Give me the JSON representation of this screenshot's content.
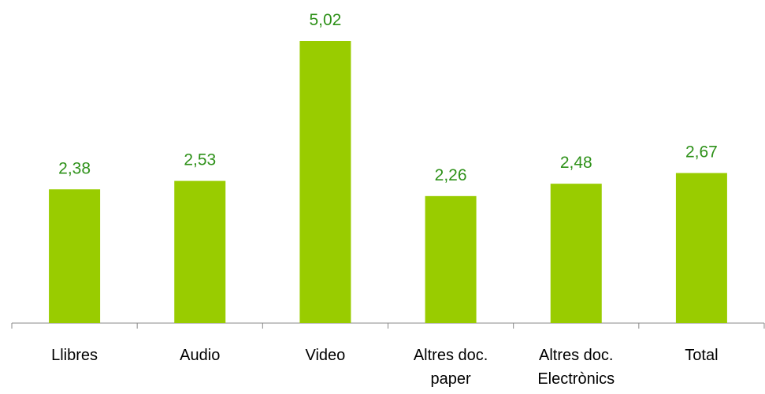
{
  "chart_data": {
    "type": "bar",
    "categories": [
      "Llibres",
      "Audio",
      "Video",
      "Altres doc. paper",
      "Altres doc. Electrònics",
      "Total"
    ],
    "values": [
      2.38,
      2.53,
      5.02,
      2.26,
      2.48,
      2.67
    ],
    "value_labels": [
      "2,38",
      "2,53",
      "5,02",
      "2,26",
      "2,48",
      "2,67"
    ],
    "color": "#99cc00",
    "label_color": "#2e9119"
  }
}
